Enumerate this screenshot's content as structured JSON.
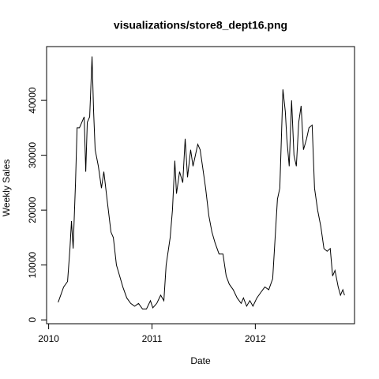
{
  "chart_data": {
    "type": "line",
    "title": "visualizations/store8_dept16.png",
    "x_label": "Date",
    "y_label": "Weekly Sales",
    "xlim": [
      2009.98,
      2012.96
    ],
    "ylim": [
      -700,
      49800
    ],
    "xticks": [
      2010,
      2011,
      2012
    ],
    "yticks": [
      0,
      10000,
      20000,
      30000,
      40000
    ],
    "color": "#000000",
    "x": [
      2010.092,
      2010.145,
      2010.183,
      2010.206,
      2010.221,
      2010.237,
      2010.26,
      2010.275,
      2010.298,
      2010.321,
      2010.344,
      2010.359,
      2010.374,
      2010.397,
      2010.42,
      2010.435,
      2010.45,
      2010.481,
      2010.511,
      2010.534,
      2010.565,
      2010.603,
      2010.626,
      2010.656,
      2010.687,
      2010.718,
      2010.756,
      2010.794,
      2010.832,
      2010.87,
      2010.908,
      2010.947,
      2010.985,
      2011.008,
      2011.046,
      2011.084,
      2011.115,
      2011.137,
      2011.176,
      2011.198,
      2011.221,
      2011.237,
      2011.267,
      2011.298,
      2011.321,
      2011.344,
      2011.374,
      2011.397,
      2011.42,
      2011.443,
      2011.466,
      2011.489,
      2011.519,
      2011.55,
      2011.58,
      2011.611,
      2011.649,
      2011.687,
      2011.718,
      2011.748,
      2011.786,
      2011.824,
      2011.863,
      2011.885,
      2011.916,
      2011.947,
      2011.977,
      2012.015,
      2012.053,
      2012.092,
      2012.13,
      2012.168,
      2012.214,
      2012.237,
      2012.267,
      2012.29,
      2012.305,
      2012.328,
      2012.351,
      2012.374,
      2012.397,
      2012.42,
      2012.443,
      2012.466,
      2012.496,
      2012.519,
      2012.55,
      2012.573,
      2012.603,
      2012.634,
      2012.664,
      2012.695,
      2012.725,
      2012.748,
      2012.771,
      2012.802,
      2012.824,
      2012.847,
      2012.863
    ],
    "values": [
      3200,
      6000,
      7000,
      13000,
      18000,
      13000,
      25000,
      35000,
      35000,
      36000,
      37000,
      27000,
      36000,
      37000,
      48000,
      38000,
      31000,
      28000,
      24000,
      27000,
      22000,
      16000,
      15000,
      10000,
      8000,
      6000,
      4000,
      3000,
      2500,
      3000,
      2000,
      2000,
      3500,
      2200,
      3000,
      4500,
      3500,
      10000,
      15000,
      20000,
      29000,
      23000,
      27000,
      25000,
      33000,
      26000,
      31000,
      28000,
      30000,
      32000,
      31000,
      28000,
      24000,
      19000,
      16000,
      14000,
      12000,
      12000,
      8000,
      6500,
      5500,
      4000,
      3000,
      4000,
      2500,
      3500,
      2500,
      4000,
      5000,
      6000,
      5500,
      7500,
      22000,
      24000,
      42000,
      38000,
      33000,
      28000,
      40000,
      30000,
      28000,
      36000,
      39000,
      31000,
      33000,
      35000,
      35500,
      24000,
      20000,
      17000,
      13000,
      12500,
      13000,
      8000,
      9000,
      6000,
      4500,
      5500,
      4500
    ]
  }
}
